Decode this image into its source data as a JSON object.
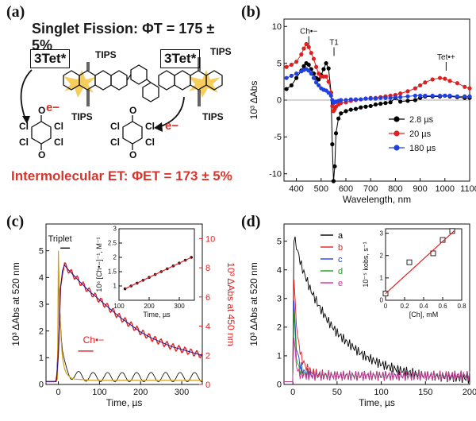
{
  "panel_a": {
    "label": "(a)",
    "headline_prefix": "Singlet Fission: ",
    "headline_phi": "ΦT = 175 ± 5%",
    "tet_label": "3Tet*",
    "tips": "TIPS",
    "electron": "e−",
    "cl": "Cl",
    "o": "O",
    "footer": "Intermolecular ET: ΦET = 173 ± 5%",
    "colors": {
      "headline": "#1a1a1a",
      "footer": "#d9342b",
      "star": "#f5c542",
      "arrow": "#d9342b"
    }
  },
  "chart_data": [
    {
      "panel": "(b)",
      "type": "scatter",
      "xlabel": "Wavelength, nm",
      "ylabel": "10³ ΔAbs",
      "xlim": [
        350,
        1100
      ],
      "ylim": [
        -11,
        11
      ],
      "xticks": [
        400,
        500,
        600,
        700,
        800,
        900,
        1000,
        1100
      ],
      "yticks": [
        -10,
        -5,
        0,
        5,
        10
      ],
      "annotations": [
        "Ch•−",
        "T1",
        "Tet•+"
      ],
      "legend_position": "bottom-right",
      "series": [
        {
          "name": "2.8 µs",
          "color": "#000000",
          "x": [
            360,
            380,
            400,
            420,
            430,
            440,
            450,
            460,
            470,
            480,
            490,
            500,
            510,
            520,
            530,
            540,
            545,
            550,
            555,
            560,
            570,
            580,
            600,
            620,
            640,
            660,
            680,
            700,
            720,
            740,
            760,
            780,
            800,
            820,
            850,
            880,
            900,
            920,
            950,
            980,
            1000,
            1020,
            1050,
            1080,
            1100
          ],
          "y": [
            1.5,
            2.0,
            3.0,
            4.0,
            4.6,
            5.0,
            4.8,
            4.2,
            3.6,
            3.0,
            2.8,
            3.4,
            4.2,
            5.0,
            4.3,
            1.0,
            -6.0,
            -11.0,
            -9.0,
            -4.5,
            -2.5,
            -1.8,
            -1.5,
            -1.3,
            -1.2,
            -1.0,
            -0.9,
            -0.8,
            -0.6,
            -0.5,
            -0.4,
            -0.3,
            0.3,
            -0.2,
            -0.1,
            0.0,
            0.3,
            0.5,
            0.5,
            0.5,
            0.6,
            0.5,
            0.4,
            0.3,
            0.3
          ]
        },
        {
          "name": "20 µs",
          "color": "#e02020",
          "x": [
            360,
            380,
            400,
            420,
            430,
            440,
            450,
            460,
            470,
            480,
            490,
            500,
            510,
            520,
            530,
            540,
            545,
            550,
            555,
            560,
            570,
            580,
            600,
            620,
            640,
            660,
            680,
            700,
            720,
            740,
            760,
            780,
            800,
            820,
            850,
            880,
            900,
            920,
            950,
            980,
            1000,
            1020,
            1050,
            1080,
            1100
          ],
          "y": [
            4.5,
            4.8,
            5.2,
            6.2,
            7.0,
            7.6,
            7.2,
            6.4,
            5.6,
            4.5,
            3.6,
            3.2,
            3.2,
            3.2,
            2.5,
            1.0,
            -0.8,
            -1.5,
            -1.2,
            -0.9,
            -0.6,
            -0.4,
            -0.3,
            -0.1,
            0.0,
            0.1,
            0.2,
            0.3,
            0.3,
            0.4,
            0.5,
            0.6,
            0.7,
            0.9,
            1.2,
            1.6,
            2.0,
            2.4,
            2.8,
            3.0,
            2.9,
            2.6,
            2.3,
            1.8,
            1.6
          ]
        },
        {
          "name": "180 µs",
          "color": "#2040e0",
          "x": [
            360,
            380,
            400,
            420,
            430,
            440,
            450,
            460,
            470,
            480,
            490,
            500,
            510,
            520,
            530,
            540,
            545,
            550,
            555,
            560,
            570,
            580,
            600,
            620,
            640,
            660,
            680,
            700,
            720,
            740,
            760,
            780,
            800,
            820,
            850,
            880,
            900,
            920,
            950,
            980,
            1000,
            1020,
            1050,
            1080,
            1100
          ],
          "y": [
            3.0,
            3.3,
            3.6,
            3.9,
            4.1,
            4.2,
            4.0,
            3.6,
            3.0,
            2.4,
            2.0,
            1.6,
            1.4,
            1.3,
            1.0,
            0.6,
            0.0,
            -0.4,
            -0.3,
            -0.2,
            -0.1,
            0.0,
            0.0,
            0.1,
            0.1,
            0.1,
            0.2,
            0.2,
            0.2,
            0.3,
            0.3,
            0.3,
            0.4,
            0.4,
            0.5,
            0.6,
            0.6,
            0.6,
            0.6,
            0.6,
            0.6,
            0.6,
            0.5,
            0.5,
            0.5
          ]
        }
      ]
    },
    {
      "panel": "(c)",
      "type": "line",
      "xlabel": "Time, µs",
      "ylabel": "10³ ΔAbs at 520 nm",
      "y2label": "10³ ΔAbs at 450 nm",
      "xlim": [
        -30,
        350
      ],
      "ylim": [
        0,
        6
      ],
      "y2lim": [
        0,
        11
      ],
      "xticks": [
        0,
        100,
        200,
        300
      ],
      "yticks": [
        0,
        1,
        2,
        3,
        4,
        5
      ],
      "y2ticks": [
        0,
        2,
        4,
        6,
        8,
        10
      ],
      "annotations": [
        "Triplet",
        "Ch•−"
      ],
      "series": [
        {
          "name": "Triplet",
          "axis": "left",
          "color": "#000000",
          "fit_color": "#d4a017",
          "x": [
            -30,
            -10,
            -2,
            0,
            2,
            4,
            6,
            8,
            10,
            15,
            20,
            30,
            40,
            60,
            80,
            100,
            150,
            200,
            250,
            300,
            350
          ],
          "y": [
            0.1,
            0.1,
            0.2,
            5.0,
            3.6,
            2.6,
            1.9,
            1.4,
            1.0,
            0.6,
            0.4,
            0.25,
            0.2,
            0.18,
            0.15,
            0.15,
            0.15,
            0.15,
            0.15,
            0.15,
            0.15
          ]
        },
        {
          "name": "Ch•−",
          "axis": "right",
          "color": "#e02020",
          "fit_color": "#1a1a8f",
          "x": [
            -30,
            -5,
            0,
            5,
            10,
            15,
            20,
            30,
            50,
            75,
            100,
            125,
            150,
            175,
            200,
            225,
            250,
            275,
            300,
            325,
            350
          ],
          "y": [
            0.2,
            0.2,
            2.0,
            6.5,
            7.8,
            8.2,
            8.0,
            7.7,
            7.1,
            6.4,
            5.8,
            5.2,
            4.6,
            4.1,
            3.6,
            3.2,
            2.9,
            2.6,
            2.4,
            2.2,
            2.0
          ]
        }
      ],
      "inset": {
        "type": "scatter",
        "xlabel": "Time, µs",
        "ylabel": "10⁶ [Ch•−]⁻¹, M⁻¹",
        "xlim": [
          100,
          350
        ],
        "ylim": [
          0.5,
          3.0
        ],
        "xticks": [
          100,
          200,
          300
        ],
        "yticks": [
          1.0,
          1.5,
          2.0,
          2.5,
          3.0
        ],
        "x": [
          120,
          140,
          160,
          180,
          200,
          220,
          240,
          260,
          280,
          300,
          320,
          340
        ],
        "y": [
          0.9,
          1.0,
          1.1,
          1.2,
          1.3,
          1.4,
          1.5,
          1.6,
          1.7,
          1.8,
          1.9,
          2.0
        ],
        "fit_color": "#e02020"
      }
    },
    {
      "panel": "(d)",
      "type": "line",
      "xlabel": "Time, µs",
      "ylabel": "10³ ΔAbs at 520 nm",
      "xlim": [
        -10,
        200
      ],
      "ylim": [
        0,
        5.6
      ],
      "xticks": [
        0,
        50,
        100,
        150,
        200
      ],
      "yticks": [
        0,
        1,
        2,
        3,
        4,
        5
      ],
      "legend_position": "top-right",
      "series": [
        {
          "name": "a",
          "color": "#000000",
          "x": [
            0,
            5,
            10,
            20,
            30,
            40,
            50,
            60,
            80,
            100,
            120,
            150,
            200
          ],
          "y": [
            5.2,
            4.6,
            4.0,
            3.2,
            2.6,
            2.1,
            1.7,
            1.4,
            0.9,
            0.6,
            0.4,
            0.2,
            0.1
          ]
        },
        {
          "name": "b",
          "color": "#e02020",
          "x": [
            0,
            2,
            5,
            10,
            15,
            20,
            30,
            50,
            100,
            200
          ],
          "y": [
            4.8,
            3.0,
            1.6,
            0.8,
            0.5,
            0.35,
            0.25,
            0.2,
            0.2,
            0.2
          ]
        },
        {
          "name": "c",
          "color": "#2040e0",
          "x": [
            0,
            2,
            4,
            8,
            12,
            20,
            30,
            50,
            100,
            200
          ],
          "y": [
            4.2,
            2.2,
            1.2,
            0.6,
            0.35,
            0.25,
            0.2,
            0.2,
            0.2,
            0.2
          ]
        },
        {
          "name": "d",
          "color": "#1f9e1f",
          "x": [
            0,
            2,
            4,
            6,
            10,
            20,
            30,
            50,
            100,
            200
          ],
          "y": [
            3.8,
            1.8,
            0.9,
            0.5,
            0.3,
            0.2,
            0.2,
            0.2,
            0.2,
            0.2
          ]
        },
        {
          "name": "e",
          "color": "#cc3399",
          "x": [
            0,
            1,
            3,
            5,
            8,
            15,
            30,
            50,
            100,
            200
          ],
          "y": [
            3.5,
            1.8,
            0.8,
            0.4,
            0.25,
            0.2,
            0.2,
            0.2,
            0.2,
            0.2
          ]
        }
      ],
      "inset": {
        "type": "scatter",
        "xlabel": "[Ch], mM",
        "ylabel": "10⁻⁵ kobs, s⁻¹",
        "xlim": [
          0,
          0.8
        ],
        "ylim": [
          0,
          3.2
        ],
        "xticks": [
          0,
          0.2,
          0.4,
          0.6,
          0.8
        ],
        "yticks": [
          0,
          1,
          2,
          3
        ],
        "x": [
          0.0,
          0.25,
          0.5,
          0.6,
          0.7
        ],
        "y": [
          0.3,
          1.7,
          2.1,
          2.7,
          3.1
        ],
        "fit_color": "#e02020"
      }
    }
  ]
}
